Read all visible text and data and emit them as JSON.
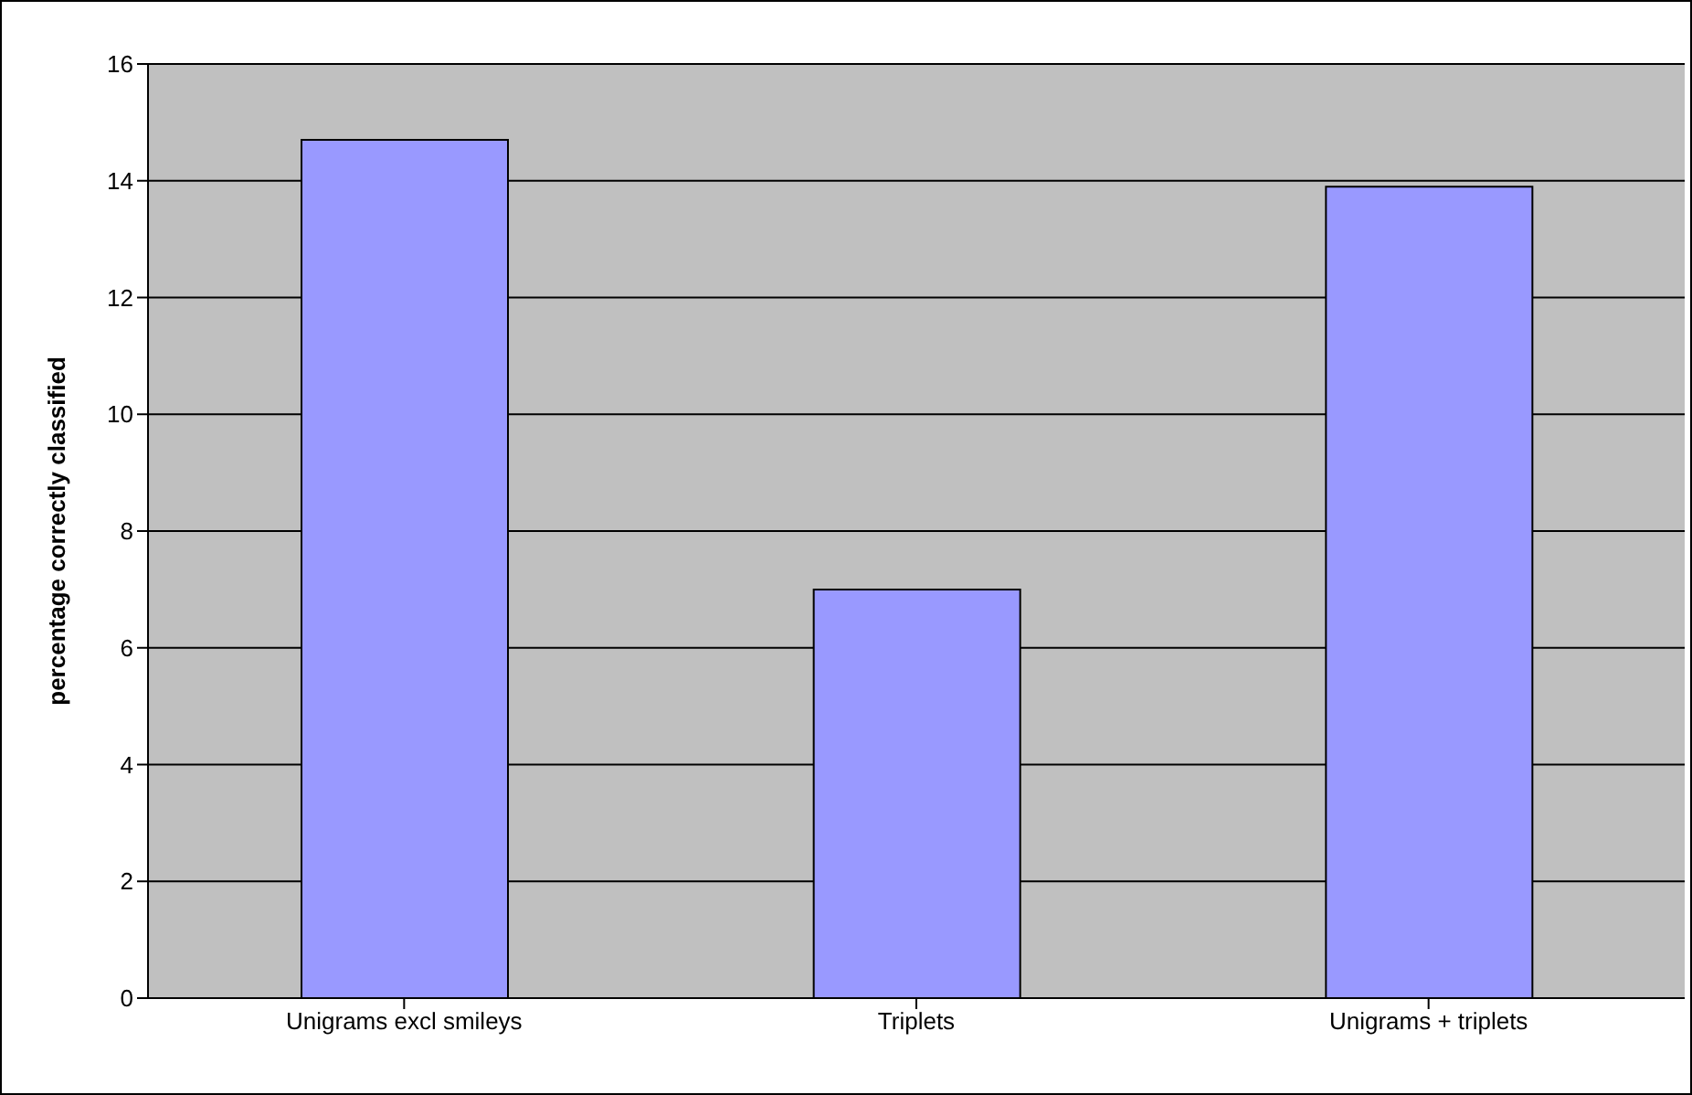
{
  "chart_data": {
    "type": "bar",
    "ylabel": "percentage correctly classified",
    "categories": [
      "Unigrams excl smileys",
      "Triplets",
      "Unigrams + triplets"
    ],
    "values": [
      14.7,
      7.0,
      13.9
    ],
    "color": "#9999ff",
    "ylim": [
      0,
      16
    ],
    "yticks": [
      0,
      2,
      4,
      6,
      8,
      10,
      12,
      14,
      16
    ],
    "grid": "y"
  }
}
